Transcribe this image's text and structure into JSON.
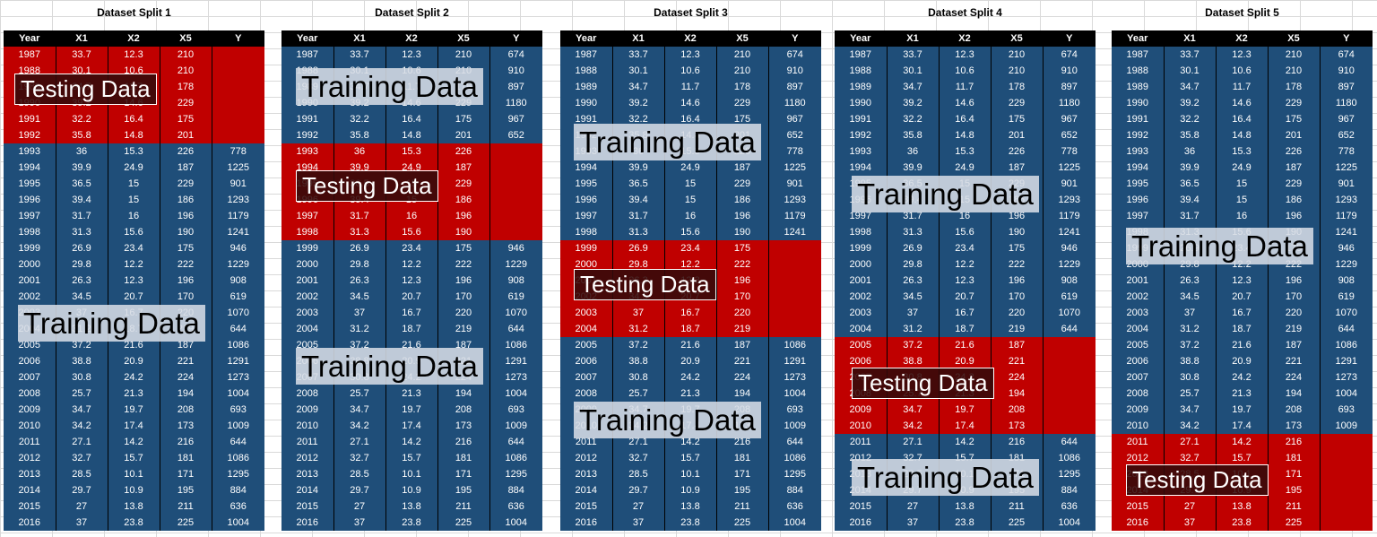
{
  "headers": [
    "Year",
    "X1",
    "X2",
    "X5",
    "Y"
  ],
  "rows": [
    [
      "1987",
      "33.7",
      "12.3",
      "210",
      "674"
    ],
    [
      "1988",
      "30.1",
      "10.6",
      "210",
      "910"
    ],
    [
      "1989",
      "34.7",
      "11.7",
      "178",
      "897"
    ],
    [
      "1990",
      "39.2",
      "14.6",
      "229",
      "1180"
    ],
    [
      "1991",
      "32.2",
      "16.4",
      "175",
      "967"
    ],
    [
      "1992",
      "35.8",
      "14.8",
      "201",
      "652"
    ],
    [
      "1993",
      "36",
      "15.3",
      "226",
      "778"
    ],
    [
      "1994",
      "39.9",
      "24.9",
      "187",
      "1225"
    ],
    [
      "1995",
      "36.5",
      "15",
      "229",
      "901"
    ],
    [
      "1996",
      "39.4",
      "15",
      "186",
      "1293"
    ],
    [
      "1997",
      "31.7",
      "16",
      "196",
      "1179"
    ],
    [
      "1998",
      "31.3",
      "15.6",
      "190",
      "1241"
    ],
    [
      "1999",
      "26.9",
      "23.4",
      "175",
      "946"
    ],
    [
      "2000",
      "29.8",
      "12.2",
      "222",
      "1229"
    ],
    [
      "2001",
      "26.3",
      "12.3",
      "196",
      "908"
    ],
    [
      "2002",
      "34.5",
      "20.7",
      "170",
      "619"
    ],
    [
      "2003",
      "37",
      "16.7",
      "220",
      "1070"
    ],
    [
      "2004",
      "31.2",
      "18.7",
      "219",
      "644"
    ],
    [
      "2005",
      "37.2",
      "21.6",
      "187",
      "1086"
    ],
    [
      "2006",
      "38.8",
      "20.9",
      "221",
      "1291"
    ],
    [
      "2007",
      "30.8",
      "24.2",
      "224",
      "1273"
    ],
    [
      "2008",
      "25.7",
      "21.3",
      "194",
      "1004"
    ],
    [
      "2009",
      "34.7",
      "19.7",
      "208",
      "693"
    ],
    [
      "2010",
      "34.2",
      "17.4",
      "173",
      "1009"
    ],
    [
      "2011",
      "27.1",
      "14.2",
      "216",
      "644"
    ],
    [
      "2012",
      "32.7",
      "15.7",
      "181",
      "1086"
    ],
    [
      "2013",
      "28.5",
      "10.1",
      "171",
      "1295"
    ],
    [
      "2014",
      "29.7",
      "10.9",
      "195",
      "884"
    ],
    [
      "2015",
      "27",
      "13.8",
      "211",
      "636"
    ],
    [
      "2016",
      "37",
      "23.8",
      "225",
      "1004"
    ]
  ],
  "splits": [
    {
      "title": "Dataset Split 1",
      "test_rows": [
        0,
        5
      ],
      "labels": [
        {
          "text": "Testing Data",
          "type": "test"
        },
        {
          "text": "Training Data",
          "type": "train"
        }
      ]
    },
    {
      "title": "Dataset Split 2",
      "test_rows": [
        6,
        11
      ],
      "labels": [
        {
          "text": "Training Data",
          "type": "train"
        },
        {
          "text": "Testing Data",
          "type": "test"
        },
        {
          "text": "Training Data",
          "type": "train"
        }
      ]
    },
    {
      "title": "Dataset Split 3",
      "test_rows": [
        12,
        17
      ],
      "labels": [
        {
          "text": "Training Data",
          "type": "train"
        },
        {
          "text": "Testing Data",
          "type": "test"
        },
        {
          "text": "Training Data",
          "type": "train"
        }
      ]
    },
    {
      "title": "Dataset Split 4",
      "test_rows": [
        18,
        23
      ],
      "labels": [
        {
          "text": "Training Data",
          "type": "train"
        },
        {
          "text": "Testing Data",
          "type": "test"
        },
        {
          "text": "Training Data",
          "type": "train"
        }
      ]
    },
    {
      "title": "Dataset Split 5",
      "test_rows": [
        24,
        29
      ],
      "labels": [
        {
          "text": "Training Data",
          "type": "train"
        },
        {
          "text": "Testing Data",
          "type": "test"
        }
      ]
    }
  ],
  "colors": {
    "training": "#1f4e79",
    "testing": "#c00000",
    "header": "#000000"
  }
}
